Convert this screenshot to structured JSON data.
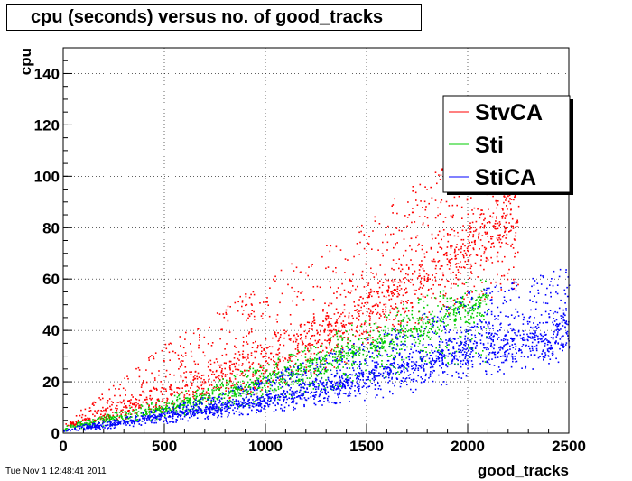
{
  "chart_data": {
    "type": "scatter",
    "title": "cpu (seconds) versus no. of good_tracks",
    "xlabel": "good_tracks",
    "ylabel": "cpu",
    "xlim": [
      0,
      2500
    ],
    "ylim": [
      0,
      150
    ],
    "xticks": [
      0,
      500,
      1000,
      1500,
      2000,
      2500
    ],
    "yticks": [
      0,
      20,
      40,
      60,
      80,
      100,
      120,
      140
    ],
    "grid": true,
    "legend_position": "top-right",
    "series": [
      {
        "name": "StvCA",
        "color": "#ff0000",
        "x_range": [
          0,
          2250
        ],
        "trend_points": [
          [
            0,
            3
          ],
          [
            500,
            15
          ],
          [
            1000,
            28
          ],
          [
            1500,
            48
          ],
          [
            2000,
            72
          ],
          [
            2200,
            85
          ]
        ],
        "upper_envelope": [
          [
            0,
            4
          ],
          [
            500,
            35
          ],
          [
            1000,
            60
          ],
          [
            1500,
            85
          ],
          [
            2000,
            110
          ],
          [
            2200,
            115
          ]
        ],
        "lower_envelope": [
          [
            0,
            2
          ],
          [
            500,
            8
          ],
          [
            1000,
            16
          ],
          [
            1500,
            30
          ],
          [
            2000,
            50
          ],
          [
            2200,
            55
          ]
        ]
      },
      {
        "name": "Sti",
        "color": "#00cc00",
        "x_range": [
          0,
          2100
        ],
        "trend_points": [
          [
            0,
            2
          ],
          [
            500,
            10
          ],
          [
            1000,
            20
          ],
          [
            1500,
            33
          ],
          [
            1800,
            42
          ],
          [
            2000,
            50
          ]
        ],
        "upper_envelope": [
          [
            0,
            3
          ],
          [
            500,
            14
          ],
          [
            1000,
            28
          ],
          [
            1500,
            45
          ],
          [
            2000,
            60
          ]
        ],
        "lower_envelope": [
          [
            0,
            1
          ],
          [
            500,
            6
          ],
          [
            1000,
            12
          ],
          [
            1500,
            20
          ],
          [
            2000,
            28
          ]
        ]
      },
      {
        "name": "StiCA",
        "color": "#0000ff",
        "x_range": [
          0,
          2500
        ],
        "trend_points": [
          [
            0,
            1
          ],
          [
            500,
            7
          ],
          [
            1000,
            13
          ],
          [
            1500,
            22
          ],
          [
            2000,
            33
          ],
          [
            2500,
            40
          ]
        ],
        "upper_envelope": [
          [
            0,
            2
          ],
          [
            500,
            10
          ],
          [
            1000,
            22
          ],
          [
            1500,
            38
          ],
          [
            2000,
            55
          ],
          [
            2500,
            65
          ]
        ],
        "lower_envelope": [
          [
            0,
            0.5
          ],
          [
            500,
            4
          ],
          [
            1000,
            8
          ],
          [
            1500,
            13
          ],
          [
            2000,
            20
          ],
          [
            2500,
            28
          ]
        ]
      }
    ]
  },
  "timestamp": "Tue Nov  1 12:48:41 2011"
}
